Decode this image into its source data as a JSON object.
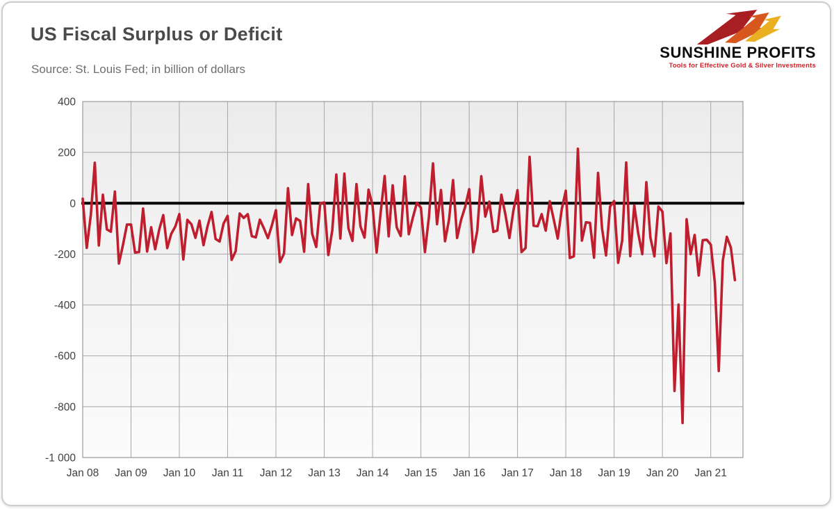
{
  "header": {
    "title": "US Fiscal Surplus or Deficit",
    "source": "Source: St. Louis Fed; in billion of dollars"
  },
  "logo": {
    "name_primary": "SUNSHINE",
    "name_secondary": "PROFITS",
    "tagline": "Tools for Effective Gold & Silver Investments",
    "bolt_icon": "lightning-arrows-icon",
    "colors": {
      "dark_red": "#a81e22",
      "orange": "#d8571f",
      "gold": "#e9b021",
      "tagline_red": "#d11f26"
    }
  },
  "chart_data": {
    "type": "line",
    "title": "US Fiscal Surplus or Deficit",
    "source": "St. Louis Fed",
    "units": "billion of dollars",
    "start_month": "2008-01",
    "end_month": "2021-07",
    "values": [
      17.8,
      -175.6,
      -48.1,
      159.3,
      -165.9,
      33.5,
      -102.8,
      -111.9,
      45.7,
      -237.2,
      -164.4,
      -83.6,
      -83.8,
      -193.9,
      -191.6,
      -20.9,
      -189.7,
      -94.3,
      -180.7,
      -103.6,
      -46.6,
      -176.4,
      -120.3,
      -91.9,
      -42.6,
      -220.9,
      -65.4,
      -82.7,
      -135.9,
      -68.4,
      -165.0,
      -90.5,
      -34.6,
      -140.4,
      -150.4,
      -80.0,
      -49.8,
      -222.5,
      -188.2,
      -40.4,
      -57.6,
      -43.1,
      -129.4,
      -134.2,
      -64.6,
      -98.5,
      -137.3,
      -86.0,
      -27.4,
      -231.7,
      -198.2,
      59.1,
      -124.6,
      -59.7,
      -69.6,
      -190.5,
      75.2,
      -120.0,
      -172.1,
      -0.3,
      2.9,
      -203.5,
      -106.5,
      112.9,
      -138.7,
      116.5,
      -97.6,
      -147.9,
      75.1,
      -91.6,
      -135.2,
      53.2,
      -10.4,
      -193.5,
      -36.9,
      106.9,
      -130.0,
      70.5,
      -94.6,
      -128.7,
      105.8,
      -121.7,
      -56.8,
      1.9,
      -17.5,
      -192.3,
      -52.9,
      156.7,
      -82.4,
      51.8,
      -149.2,
      -64.4,
      91.1,
      -136.5,
      -64.5,
      -14.4,
      55.2,
      -192.6,
      -108.0,
      106.3,
      -52.5,
      6.3,
      -112.8,
      -107.1,
      33.4,
      -44.2,
      -136.7,
      -27.3,
      51.3,
      -192.0,
      -176.2,
      182.4,
      -88.4,
      -90.2,
      -42.9,
      -107.7,
      7.9,
      -63.2,
      -138.6,
      -23.2,
      49.2,
      -215.2,
      -208.7,
      214.3,
      -146.8,
      -74.9,
      -76.9,
      -214.1,
      119.1,
      -100.5,
      -204.9,
      -13.5,
      8.7,
      -234.0,
      -146.9,
      160.3,
      -207.8,
      -8.5,
      -119.7,
      -200.3,
      82.8,
      -134.5,
      -208.8,
      -13.3,
      -32.6,
      -235.3,
      -119.1,
      -738.0,
      -398.8,
      -864.1,
      -63.0,
      -200.1,
      -124.6,
      -284.1,
      -145.3,
      -143.6,
      -162.8,
      -310.9,
      -659.6,
      -225.6,
      -132.0,
      -174.2,
      -302.1
    ],
    "ylim": [
      -1000,
      400
    ],
    "y_ticks": [
      400,
      200,
      0,
      -200,
      -400,
      -600,
      -800,
      -1000
    ],
    "y_tick_labels": [
      "400",
      "200",
      "0",
      "-200",
      "-400",
      "-600",
      "-800",
      "-1 000"
    ],
    "x_tick_labels": [
      "Jan 08",
      "Jan 09",
      "Jan 10",
      "Jan 11",
      "Jan 12",
      "Jan 13",
      "Jan 14",
      "Jan 15",
      "Jan 16",
      "Jan 17",
      "Jan 18",
      "Jan 19",
      "Jan 20",
      "Jan 21"
    ],
    "x_tick_every_months": 12,
    "grid": true,
    "legend": "none",
    "line_color": "#be1e2d",
    "zero_line_color": "#000000",
    "grid_color": "#a6a6a6",
    "plot_bg_top": "#ececec",
    "plot_bg_bottom": "#fbfbfb"
  }
}
